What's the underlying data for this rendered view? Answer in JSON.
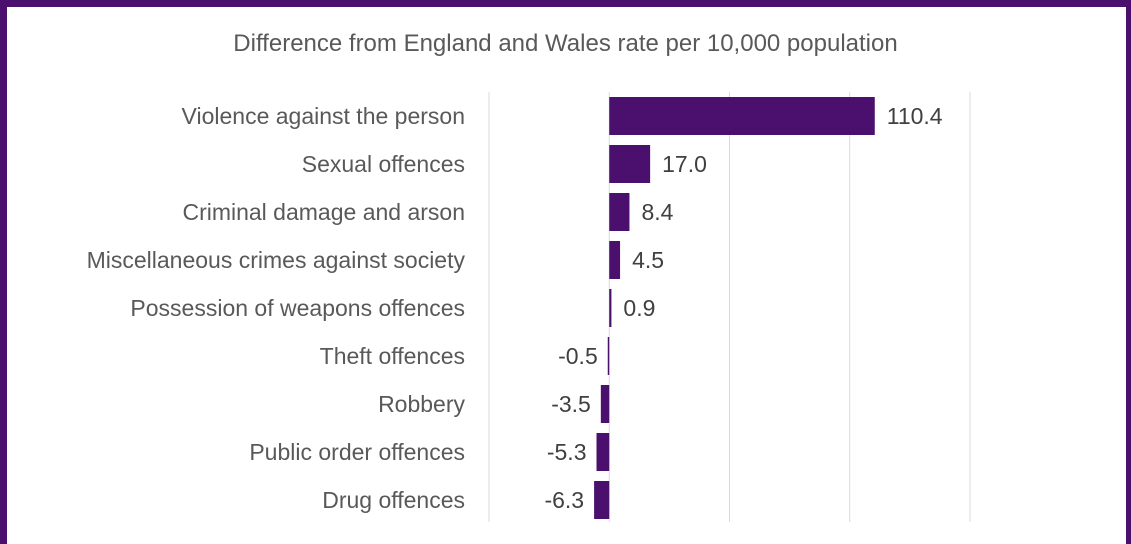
{
  "chart_data": {
    "type": "bar",
    "orientation": "horizontal",
    "title": "Difference from England and Wales rate per 10,000 population",
    "xlabel": "",
    "ylabel": "",
    "xlim": [
      -50,
      150
    ],
    "grid": true,
    "legend": "none",
    "categories": [
      "Violence against the person",
      "Sexual offences",
      "Criminal damage and arson",
      "Miscellaneous crimes against society",
      "Possession of weapons offences",
      "Theft offences",
      "Robbery",
      "Public order offences",
      "Drug offences"
    ],
    "values": [
      110.4,
      17.0,
      8.4,
      4.5,
      0.9,
      -0.5,
      -3.5,
      -5.3,
      -6.3
    ],
    "value_labels": [
      "110.4",
      "17.0",
      "8.4",
      "4.5",
      "0.9",
      "-0.5",
      "-3.5",
      "-5.3",
      "-6.3"
    ],
    "bar_color": "#4b0f6e",
    "frame_color": "#4b0f6e"
  }
}
